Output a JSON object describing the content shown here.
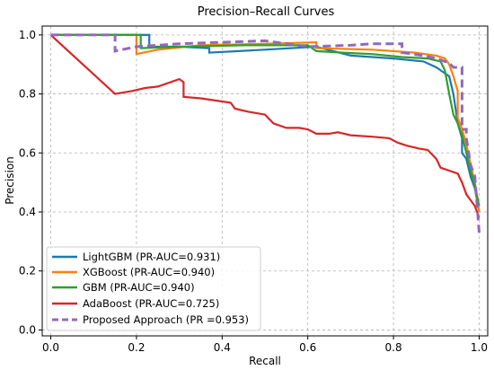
{
  "chart_data": {
    "type": "line",
    "title": "Precision–Recall Curves",
    "xlabel": "Recall",
    "ylabel": "Precision",
    "xlim": [
      -0.02,
      1.02
    ],
    "ylim": [
      -0.02,
      1.03
    ],
    "xticks": [
      0.0,
      0.2,
      0.4,
      0.6,
      0.8,
      1.0
    ],
    "xtick_labels": [
      "0.0",
      "0.2",
      "0.4",
      "0.6",
      "0.8",
      "1.0"
    ],
    "yticks": [
      0.0,
      0.2,
      0.4,
      0.6,
      0.8,
      1.0
    ],
    "ytick_labels": [
      "0.0",
      "0.2",
      "0.4",
      "0.6",
      "0.8",
      "1.0"
    ],
    "grid": true,
    "legend_position": "lower-left",
    "series": [
      {
        "name": "LightGBM (PR-AUC=0.931)",
        "color": "#1f77b4",
        "dash": "solid",
        "points": [
          [
            0.0,
            1.0
          ],
          [
            0.23,
            1.0
          ],
          [
            0.23,
            0.96
          ],
          [
            0.3,
            0.96
          ],
          [
            0.37,
            0.955
          ],
          [
            0.37,
            0.94
          ],
          [
            0.5,
            0.95
          ],
          [
            0.62,
            0.96
          ],
          [
            0.7,
            0.93
          ],
          [
            0.8,
            0.92
          ],
          [
            0.87,
            0.91
          ],
          [
            0.9,
            0.89
          ],
          [
            0.92,
            0.87
          ],
          [
            0.93,
            0.86
          ],
          [
            0.94,
            0.8
          ],
          [
            0.95,
            0.7
          ],
          [
            0.96,
            0.65
          ],
          [
            0.96,
            0.6
          ],
          [
            0.97,
            0.58
          ],
          [
            0.98,
            0.52
          ],
          [
            0.99,
            0.48
          ],
          [
            1.0,
            0.4
          ]
        ]
      },
      {
        "name": "XGBoost (PR-AUC=0.940)",
        "color": "#ff7f0e",
        "dash": "solid",
        "points": [
          [
            0.0,
            1.0
          ],
          [
            0.2,
            1.0
          ],
          [
            0.2,
            0.935
          ],
          [
            0.25,
            0.95
          ],
          [
            0.35,
            0.965
          ],
          [
            0.5,
            0.97
          ],
          [
            0.62,
            0.975
          ],
          [
            0.62,
            0.955
          ],
          [
            0.75,
            0.95
          ],
          [
            0.85,
            0.94
          ],
          [
            0.9,
            0.93
          ],
          [
            0.92,
            0.92
          ],
          [
            0.93,
            0.9
          ],
          [
            0.94,
            0.86
          ],
          [
            0.95,
            0.81
          ],
          [
            0.95,
            0.72
          ],
          [
            0.96,
            0.68
          ],
          [
            0.97,
            0.63
          ],
          [
            0.98,
            0.56
          ],
          [
            0.99,
            0.5
          ],
          [
            1.0,
            0.4
          ]
        ]
      },
      {
        "name": "GBM (PR-AUC=0.940)",
        "color": "#2ca02c",
        "dash": "solid",
        "points": [
          [
            0.0,
            1.0
          ],
          [
            0.21,
            1.0
          ],
          [
            0.21,
            0.955
          ],
          [
            0.3,
            0.96
          ],
          [
            0.45,
            0.965
          ],
          [
            0.6,
            0.965
          ],
          [
            0.62,
            0.945
          ],
          [
            0.68,
            0.94
          ],
          [
            0.75,
            0.935
          ],
          [
            0.82,
            0.925
          ],
          [
            0.88,
            0.92
          ],
          [
            0.91,
            0.91
          ],
          [
            0.92,
            0.88
          ],
          [
            0.93,
            0.8
          ],
          [
            0.94,
            0.73
          ],
          [
            0.95,
            0.7
          ],
          [
            0.96,
            0.66
          ],
          [
            0.97,
            0.6
          ],
          [
            0.98,
            0.54
          ],
          [
            0.99,
            0.49
          ],
          [
            1.0,
            0.42
          ]
        ]
      },
      {
        "name": "AdaBoost (PR-AUC=0.725)",
        "color": "#d62728",
        "dash": "solid",
        "points": [
          [
            0.0,
            1.0
          ],
          [
            0.15,
            0.8
          ],
          [
            0.17,
            0.805
          ],
          [
            0.19,
            0.81
          ],
          [
            0.22,
            0.82
          ],
          [
            0.25,
            0.825
          ],
          [
            0.3,
            0.85
          ],
          [
            0.31,
            0.84
          ],
          [
            0.31,
            0.79
          ],
          [
            0.35,
            0.785
          ],
          [
            0.42,
            0.77
          ],
          [
            0.43,
            0.75
          ],
          [
            0.46,
            0.74
          ],
          [
            0.5,
            0.73
          ],
          [
            0.52,
            0.7
          ],
          [
            0.55,
            0.685
          ],
          [
            0.58,
            0.685
          ],
          [
            0.6,
            0.68
          ],
          [
            0.62,
            0.665
          ],
          [
            0.65,
            0.665
          ],
          [
            0.67,
            0.67
          ],
          [
            0.7,
            0.66
          ],
          [
            0.75,
            0.655
          ],
          [
            0.79,
            0.65
          ],
          [
            0.81,
            0.635
          ],
          [
            0.83,
            0.625
          ],
          [
            0.86,
            0.615
          ],
          [
            0.88,
            0.61
          ],
          [
            0.9,
            0.58
          ],
          [
            0.91,
            0.55
          ],
          [
            0.93,
            0.54
          ],
          [
            0.95,
            0.53
          ],
          [
            0.96,
            0.5
          ],
          [
            0.97,
            0.46
          ],
          [
            0.98,
            0.44
          ],
          [
            0.99,
            0.42
          ],
          [
            1.0,
            0.38
          ]
        ]
      },
      {
        "name": "Proposed Approach (PR =0.953)",
        "color": "#9467bd",
        "dash": "dashed",
        "points": [
          [
            0.0,
            1.0
          ],
          [
            0.15,
            1.0
          ],
          [
            0.15,
            0.945
          ],
          [
            0.2,
            0.96
          ],
          [
            0.3,
            0.97
          ],
          [
            0.4,
            0.975
          ],
          [
            0.5,
            0.98
          ],
          [
            0.6,
            0.96
          ],
          [
            0.7,
            0.965
          ],
          [
            0.75,
            0.97
          ],
          [
            0.82,
            0.97
          ],
          [
            0.82,
            0.94
          ],
          [
            0.87,
            0.93
          ],
          [
            0.9,
            0.92
          ],
          [
            0.93,
            0.905
          ],
          [
            0.94,
            0.89
          ],
          [
            0.96,
            0.89
          ],
          [
            0.96,
            0.68
          ],
          [
            0.97,
            0.68
          ],
          [
            0.97,
            0.65
          ],
          [
            0.98,
            0.56
          ],
          [
            0.99,
            0.52
          ],
          [
            1.0,
            0.33
          ]
        ]
      }
    ]
  }
}
